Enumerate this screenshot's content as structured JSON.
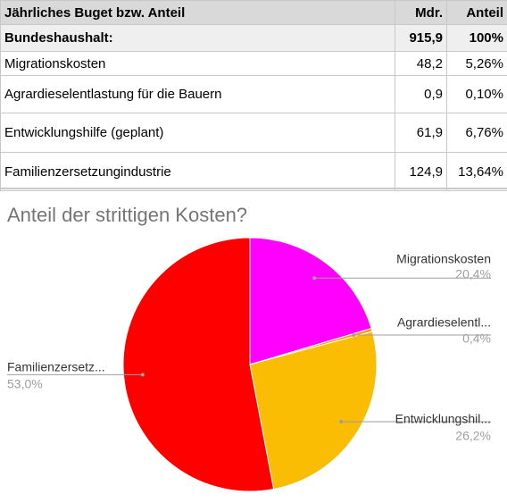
{
  "table": {
    "header": [
      "Jährliches Buget bzw. Anteil",
      "Mdr.",
      "Anteil"
    ],
    "rows": [
      [
        "Bundeshaushalt:",
        "915,9",
        "100%"
      ],
      [
        "Migrationskosten",
        "48,2",
        "5,26%"
      ],
      [
        "Agrardieselentlastung für die Bauern",
        "0,9",
        "0,10%"
      ],
      [
        "Entwicklungshilfe (geplant)",
        "61,9",
        "6,76%"
      ],
      [
        "Familienzersetzungindustrie",
        "124,9",
        "13,64%"
      ]
    ]
  },
  "chart_data": {
    "type": "pie",
    "title": "Anteil der strittigen Kosten?",
    "categories": [
      "Migrationskosten",
      "Agrardieselentl...",
      "Entwicklungshil...",
      "Familienzersetz..."
    ],
    "values": [
      20.4,
      0.4,
      26.2,
      53.0
    ],
    "value_labels": [
      "20,4%",
      "0,4%",
      "26,2%",
      "53,0%"
    ],
    "colors": [
      "#ff00ff",
      "#ff9900",
      "#fbbc04",
      "#ff0000"
    ]
  }
}
